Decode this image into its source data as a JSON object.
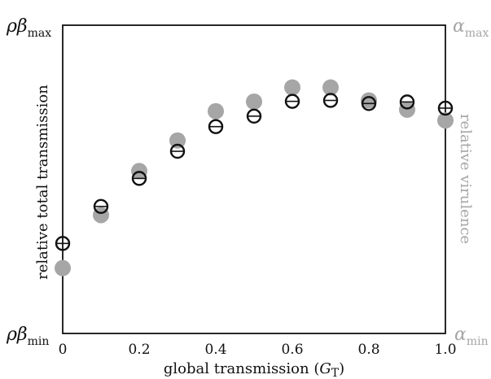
{
  "chart_data": {
    "type": "scatter",
    "xlabel": "global transmission (",
    "xlabel_sym": "G",
    "xlabel_sub": "T",
    "xlabel_close": ")",
    "ylabel_left": "relative total transmission",
    "ylabel_right": "relative virulence",
    "left_top_label": {
      "sym": "ρβ",
      "sub": "max"
    },
    "left_bottom_label": {
      "sym": "ρβ",
      "sub": "min"
    },
    "right_top_label": {
      "sym": "α",
      "sub": "max"
    },
    "right_bottom_label": {
      "sym": "α",
      "sub": "min"
    },
    "xlim": [
      0,
      1.0
    ],
    "ylim": [
      0,
      1
    ],
    "x_ticks": [
      "0",
      "0.2",
      "0.4",
      "0.6",
      "0.8",
      "1.0"
    ],
    "x": [
      0,
      0.1,
      0.2,
      0.3,
      0.4,
      0.5,
      0.6,
      0.7,
      0.8,
      0.9,
      1.0
    ],
    "series": [
      {
        "role": "relative virulence (filled grey)",
        "color": "#a6a6a6",
        "marker": "filled-circle",
        "values": [
          0.212,
          0.384,
          0.527,
          0.626,
          0.721,
          0.752,
          0.798,
          0.798,
          0.756,
          0.726,
          0.691
        ]
      },
      {
        "role": "relative total transmission (open black)",
        "color": "#111111",
        "marker": "open-circle",
        "values": [
          0.292,
          0.412,
          0.503,
          0.591,
          0.671,
          0.705,
          0.753,
          0.756,
          0.746,
          0.751,
          0.731
        ]
      }
    ]
  }
}
